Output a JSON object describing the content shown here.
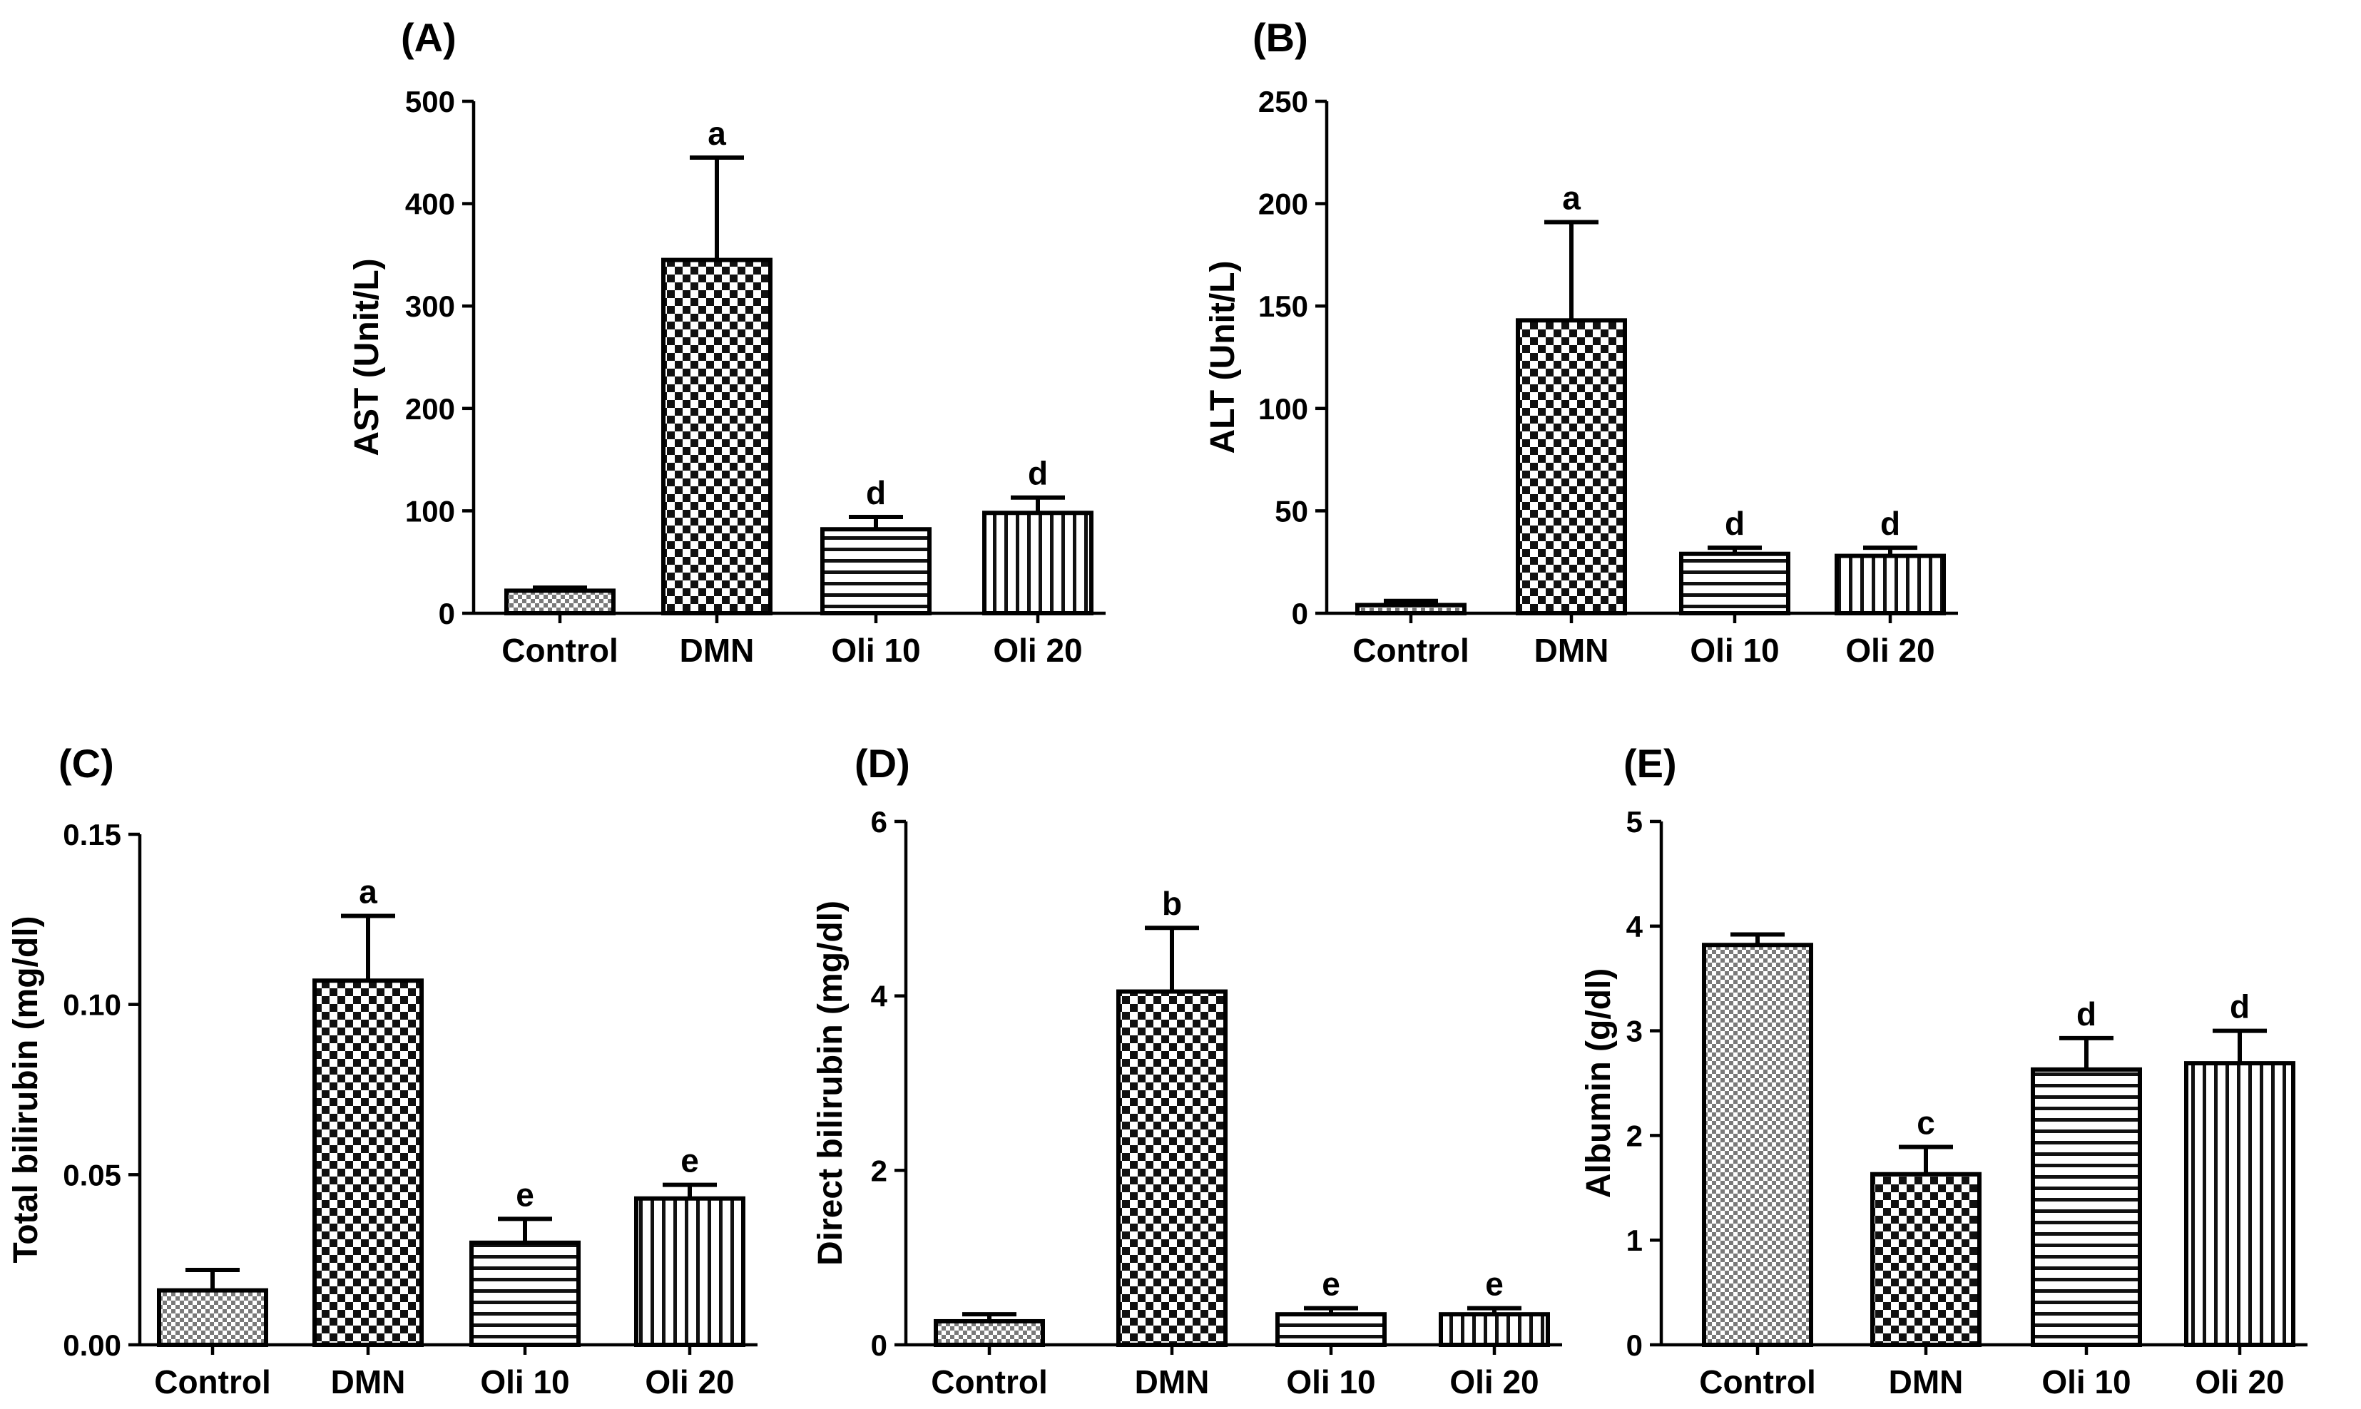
{
  "chart_data": [
    {
      "type": "bar",
      "panel": "(A)",
      "title": "",
      "ylabel": "AST (Unit/L)",
      "xlabel": "",
      "categories": [
        "Control",
        "DMN",
        "Oli 10",
        "Oli 20"
      ],
      "values": [
        22,
        345,
        82,
        98
      ],
      "errors": [
        3,
        100,
        12,
        15
      ],
      "significance": [
        "",
        "a",
        "d",
        "d"
      ],
      "patterns": [
        "check-fine",
        "check-coarse",
        "hstripe",
        "vstripe"
      ],
      "ylim": [
        0,
        500
      ],
      "yticks": [
        0,
        100,
        200,
        300,
        400,
        500
      ],
      "ytick_labels": [
        "0",
        "100",
        "200",
        "300",
        "400",
        "500"
      ]
    },
    {
      "type": "bar",
      "panel": "(B)",
      "title": "",
      "ylabel": "ALT (Unit/L)",
      "xlabel": "",
      "categories": [
        "Control",
        "DMN",
        "Oli 10",
        "Oli 20"
      ],
      "values": [
        4,
        143,
        29,
        28
      ],
      "errors": [
        2,
        48,
        3,
        4
      ],
      "significance": [
        "",
        "a",
        "d",
        "d"
      ],
      "patterns": [
        "check-fine",
        "check-coarse",
        "hstripe",
        "vstripe"
      ],
      "ylim": [
        0,
        250
      ],
      "yticks": [
        0,
        50,
        100,
        150,
        200,
        250
      ],
      "ytick_labels": [
        "0",
        "50",
        "100",
        "150",
        "200",
        "250"
      ]
    },
    {
      "type": "bar",
      "panel": "(C)",
      "title": "",
      "ylabel": "Total bilirubin (mg/dl)",
      "xlabel": "",
      "categories": [
        "Control",
        "DMN",
        "Oli 10",
        "Oli 20"
      ],
      "values": [
        0.016,
        0.107,
        0.03,
        0.043
      ],
      "errors": [
        0.006,
        0.019,
        0.007,
        0.004
      ],
      "significance": [
        "",
        "a",
        "e",
        "e"
      ],
      "patterns": [
        "check-fine",
        "check-coarse",
        "hstripe",
        "vstripe"
      ],
      "ylim": [
        0,
        0.15
      ],
      "yticks": [
        0,
        0.05,
        0.1,
        0.15
      ],
      "ytick_labels": [
        "0.00",
        "0.05",
        "0.10",
        "0.15"
      ]
    },
    {
      "type": "bar",
      "panel": "(D)",
      "title": "",
      "ylabel": "Direct bilirubin (mg/dl)",
      "xlabel": "",
      "categories": [
        "Control",
        "DMN",
        "Oli 10",
        "Oli 20"
      ],
      "values": [
        0.27,
        4.05,
        0.35,
        0.35
      ],
      "errors": [
        0.08,
        0.73,
        0.07,
        0.07
      ],
      "significance": [
        "",
        "b",
        "e",
        "e"
      ],
      "patterns": [
        "check-fine",
        "check-coarse",
        "hstripe",
        "vstripe"
      ],
      "ylim": [
        0,
        6
      ],
      "yticks": [
        0,
        2,
        4,
        6
      ],
      "ytick_labels": [
        "0",
        "2",
        "4",
        "6"
      ]
    },
    {
      "type": "bar",
      "panel": "(E)",
      "title": "",
      "ylabel": "Albumin (g/dl)",
      "xlabel": "",
      "categories": [
        "Control",
        "DMN",
        "Oli 10",
        "Oli 20"
      ],
      "values": [
        3.82,
        1.63,
        2.63,
        2.69
      ],
      "errors": [
        0.1,
        0.26,
        0.3,
        0.31
      ],
      "significance": [
        "",
        "c",
        "d",
        "d"
      ],
      "patterns": [
        "check-fine",
        "check-coarse",
        "hstripe",
        "vstripe"
      ],
      "ylim": [
        0,
        5
      ],
      "yticks": [
        0,
        1,
        2,
        3,
        4,
        5
      ],
      "ytick_labels": [
        "0",
        "1",
        "2",
        "3",
        "4",
        "5"
      ]
    }
  ]
}
